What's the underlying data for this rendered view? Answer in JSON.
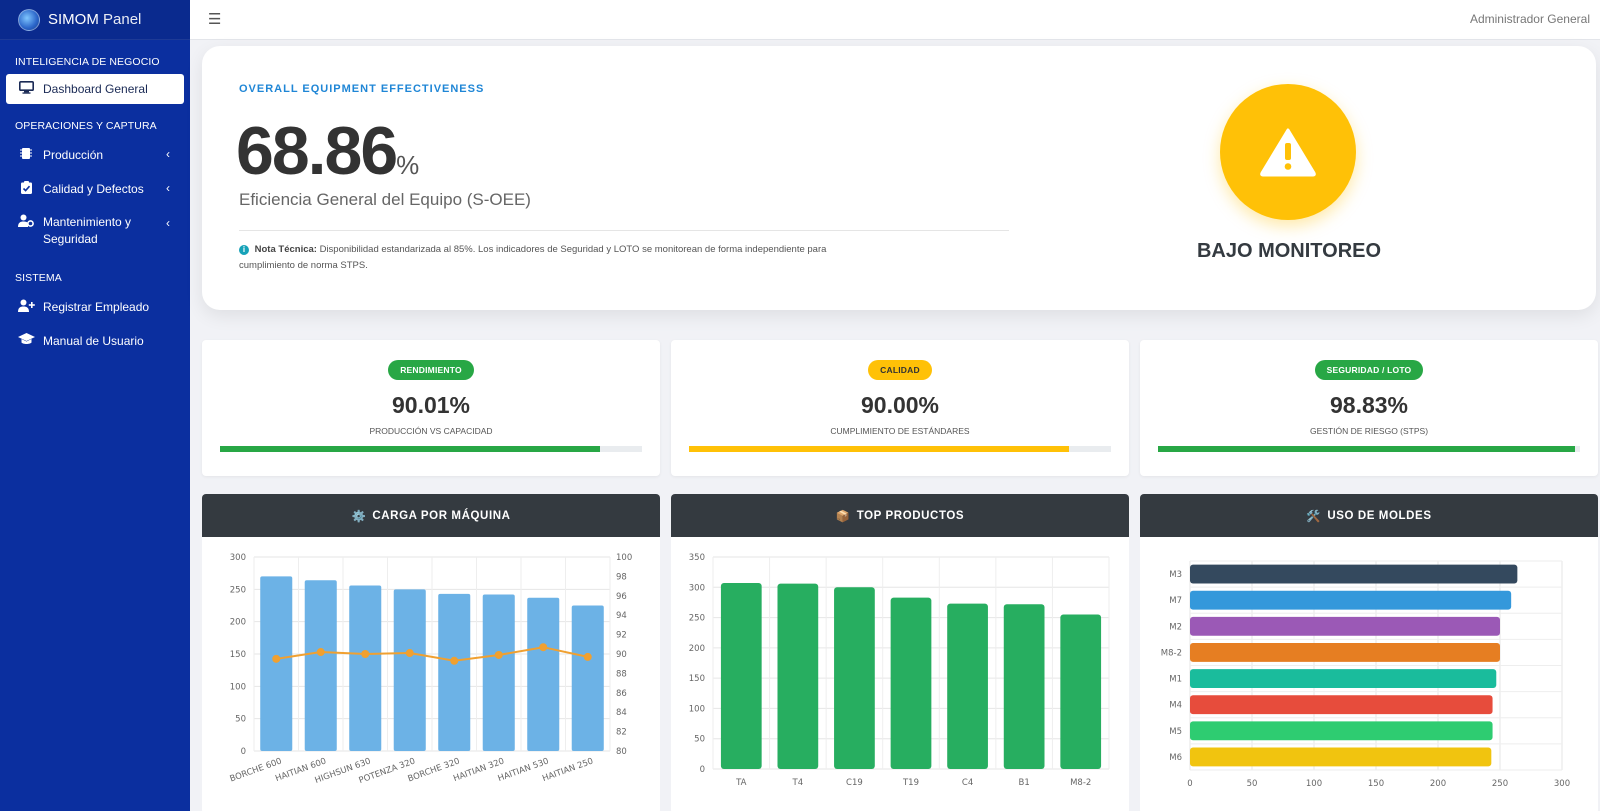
{
  "brand": {
    "name_bold": "SIMOM",
    "name_light": "Panel"
  },
  "topbar": {
    "user": "Administrador General"
  },
  "sidebar": {
    "sections": [
      {
        "header": "INTELIGENCIA DE NEGOCIO",
        "items": [
          {
            "label": "Dashboard General",
            "icon": "monitor-icon",
            "active": true
          }
        ]
      },
      {
        "header": "OPERACIONES Y CAPTURA",
        "items": [
          {
            "label": "Producción",
            "icon": "chip-icon",
            "has_children": true
          },
          {
            "label": "Calidad y Defectos",
            "icon": "clipboard-check-icon",
            "has_children": true
          },
          {
            "label": "Mantenimiento y Seguridad",
            "icon": "user-gear-icon",
            "has_children": true
          }
        ]
      },
      {
        "header": "SISTEMA",
        "items": [
          {
            "label": "Registrar Empleado",
            "icon": "user-plus-icon"
          },
          {
            "label": "Manual de Usuario",
            "icon": "graduation-cap-icon"
          }
        ]
      }
    ]
  },
  "hero": {
    "eyebrow": "OVERALL EQUIPMENT EFFECTIVENESS",
    "value": "68.86",
    "unit": "%",
    "subtitle": "Eficiencia General del Equipo (S-OEE)",
    "note_label": "Nota Técnica:",
    "note_text": "Disponibilidad estandarizada al 85%. Los indicadores de Seguridad y LOTO se monitorean de forma independiente para cumplimiento de norma STPS.",
    "status": "BAJO MONITOREO",
    "status_icon": "warning-triangle-icon",
    "status_color": "#ffc107"
  },
  "kpis": [
    {
      "badge": "RENDIMIENTO",
      "value": "90.01%",
      "label": "PRODUCCIÓN VS CAPACIDAD",
      "fraction": 0.9001,
      "color": "#28a745"
    },
    {
      "badge": "CALIDAD",
      "value": "90.00%",
      "label": "CUMPLIMIENTO DE ESTÁNDARES",
      "fraction": 0.9,
      "color": "#ffc107"
    },
    {
      "badge": "SEGURIDAD / LOTO",
      "value": "98.83%",
      "label": "GESTIÓN DE RIESGO (STPS)",
      "fraction": 0.9883,
      "color": "#28a745"
    }
  ],
  "charts": [
    {
      "title": "CARGA POR MÁQUINA",
      "icon": "⚙️"
    },
    {
      "title": "TOP PRODUCTOS",
      "icon": "📦"
    },
    {
      "title": "USO DE MOLDES",
      "icon": "🛠️"
    }
  ],
  "chart_data": [
    {
      "type": "bar",
      "categories": [
        "BORCHE 600",
        "HAITIAN 600",
        "HIGHSUN 630",
        "POTENZA 320",
        "BORCHE 320",
        "HAITIAN 320",
        "HAITIAN 530",
        "HAITIAN 250"
      ],
      "series": [
        {
          "values": [
            270,
            264,
            256,
            250,
            243,
            242,
            237,
            225
          ],
          "color": "#6cb2e6",
          "axis": "left",
          "kind": "bar"
        },
        {
          "values": [
            89.5,
            90.2,
            90.0,
            90.1,
            89.3,
            89.9,
            90.7,
            89.7
          ],
          "color": "#f0a030",
          "axis": "right",
          "kind": "line"
        }
      ],
      "ylim": [
        0,
        300
      ],
      "yticks": [
        0,
        50,
        100,
        150,
        200,
        250,
        300
      ],
      "y2lim": [
        80,
        100
      ],
      "y2ticks": [
        80,
        82,
        84,
        86,
        88,
        90,
        92,
        94,
        96,
        98,
        100
      ],
      "grid": true
    },
    {
      "type": "bar",
      "categories": [
        "TA",
        "T4",
        "C19",
        "T19",
        "C4",
        "B1",
        "M8-2"
      ],
      "values": [
        307,
        306,
        300,
        283,
        273,
        272,
        255
      ],
      "color": "#27ae60",
      "ylim": [
        0,
        350
      ],
      "yticks": [
        0,
        50,
        100,
        150,
        200,
        250,
        300,
        350
      ],
      "grid": true
    },
    {
      "type": "bar",
      "orientation": "horizontal",
      "categories": [
        "M3",
        "M7",
        "M2",
        "M8-2",
        "M1",
        "M4",
        "M5",
        "M6"
      ],
      "values": [
        264,
        259,
        250,
        250,
        247,
        244,
        244,
        243
      ],
      "colors": [
        "#34495e",
        "#3498db",
        "#9b59b6",
        "#e67e22",
        "#1abc9c",
        "#e74c3c",
        "#2ecc71",
        "#f1c40f"
      ],
      "xlim": [
        0,
        300
      ],
      "xticks": [
        0,
        50,
        100,
        150,
        200,
        250,
        300
      ],
      "grid": true
    }
  ]
}
